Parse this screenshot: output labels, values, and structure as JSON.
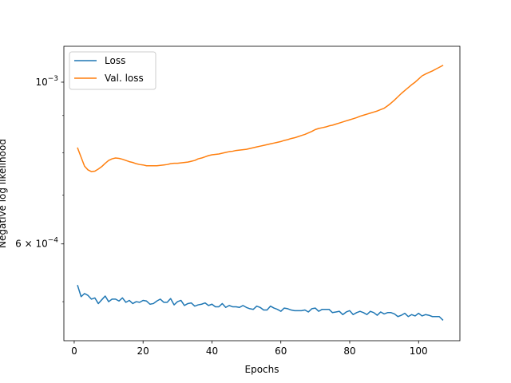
{
  "chart_data": {
    "type": "line",
    "title": "",
    "xlabel": "Epochs",
    "ylabel": "Negative log likelihood",
    "yscale": "log",
    "xlim": [
      -3,
      112
    ],
    "ylim": [
      0.000442,
      0.00112
    ],
    "xticks": [
      0,
      20,
      40,
      60,
      80,
      100
    ],
    "xtick_labels": [
      "0",
      "20",
      "40",
      "60",
      "80",
      "100"
    ],
    "yticks": [
      0.0006,
      0.001
    ],
    "ytick_labels": [
      {
        "mant": "6",
        "base": "10",
        "exp": "−4"
      },
      {
        "mant": "",
        "base": "10",
        "exp": "−3"
      }
    ],
    "grid": false,
    "legend_position": "top-left",
    "series": [
      {
        "name": "Loss",
        "color": "#1f77b4",
        "x": [
          1,
          2,
          3,
          4,
          5,
          6,
          7,
          8,
          9,
          10,
          11,
          12,
          13,
          14,
          15,
          16,
          17,
          18,
          19,
          20,
          21,
          22,
          23,
          24,
          25,
          26,
          27,
          28,
          29,
          30,
          31,
          32,
          33,
          34,
          35,
          36,
          37,
          38,
          39,
          40,
          41,
          42,
          43,
          44,
          45,
          46,
          47,
          48,
          49,
          50,
          51,
          52,
          53,
          54,
          55,
          56,
          57,
          58,
          59,
          60,
          61,
          62,
          63,
          64,
          65,
          66,
          67,
          68,
          69,
          70,
          71,
          72,
          73,
          74,
          75,
          76,
          77,
          78,
          79,
          80,
          81,
          82,
          83,
          84,
          85,
          86,
          87,
          88,
          89,
          90,
          91,
          92,
          93,
          94,
          95,
          96,
          97,
          98,
          99,
          100,
          101,
          102,
          103,
          104,
          105,
          106,
          107
        ],
        "values": [
          0.000526,
          0.000508,
          0.000513,
          0.00051,
          0.000504,
          0.000506,
          0.000497,
          0.000503,
          0.000509,
          0.0005,
          0.000504,
          0.000504,
          0.000501,
          0.000506,
          0.000499,
          0.000502,
          0.000497,
          0.0005,
          0.000499,
          0.000502,
          0.000501,
          0.000496,
          0.000497,
          0.000501,
          0.000504,
          0.000499,
          0.000499,
          0.000505,
          0.000495,
          0.0005,
          0.000502,
          0.000494,
          0.000497,
          0.000498,
          0.000493,
          0.000495,
          0.000496,
          0.000498,
          0.000494,
          0.000496,
          0.000492,
          0.000492,
          0.000497,
          0.000491,
          0.000494,
          0.000492,
          0.000492,
          0.000491,
          0.000494,
          0.000491,
          0.000489,
          0.000488,
          0.000493,
          0.000491,
          0.000487,
          0.000487,
          0.000493,
          0.00049,
          0.000488,
          0.000485,
          0.00049,
          0.000489,
          0.000487,
          0.000486,
          0.000486,
          0.000486,
          0.000487,
          0.000484,
          0.000489,
          0.00049,
          0.000485,
          0.000488,
          0.000488,
          0.000488,
          0.000483,
          0.000484,
          0.000485,
          0.00048,
          0.000484,
          0.000486,
          0.00048,
          0.000483,
          0.000485,
          0.000483,
          0.00048,
          0.000485,
          0.000483,
          0.000479,
          0.000484,
          0.000481,
          0.000483,
          0.000483,
          0.000481,
          0.000477,
          0.000479,
          0.000482,
          0.000477,
          0.00048,
          0.000478,
          0.000482,
          0.000478,
          0.00048,
          0.000479,
          0.000477,
          0.000477,
          0.000477,
          0.000472
        ]
      },
      {
        "name": "Val. loss",
        "color": "#ff7f0e",
        "x": [
          1,
          2,
          3,
          4,
          5,
          6,
          7,
          8,
          9,
          10,
          11,
          12,
          13,
          14,
          15,
          16,
          17,
          18,
          19,
          20,
          21,
          22,
          23,
          24,
          25,
          26,
          27,
          28,
          29,
          30,
          31,
          32,
          33,
          34,
          35,
          36,
          37,
          38,
          39,
          40,
          41,
          42,
          43,
          44,
          45,
          46,
          47,
          48,
          49,
          50,
          51,
          52,
          53,
          54,
          55,
          56,
          57,
          58,
          59,
          60,
          61,
          62,
          63,
          64,
          65,
          66,
          67,
          68,
          69,
          70,
          71,
          72,
          73,
          74,
          75,
          76,
          77,
          78,
          79,
          80,
          81,
          82,
          83,
          84,
          85,
          86,
          87,
          88,
          89,
          90,
          91,
          92,
          93,
          94,
          95,
          96,
          97,
          98,
          99,
          100,
          101,
          102,
          103,
          104,
          105,
          106,
          107
        ],
        "values": [
          0.000812,
          0.000789,
          0.000767,
          0.000758,
          0.000754,
          0.000755,
          0.00076,
          0.000766,
          0.000774,
          0.000781,
          0.000785,
          0.000787,
          0.000786,
          0.000784,
          0.000781,
          0.000778,
          0.000776,
          0.000773,
          0.000771,
          0.00077,
          0.000768,
          0.000768,
          0.000768,
          0.000768,
          0.000769,
          0.00077,
          0.000771,
          0.000773,
          0.000774,
          0.000774,
          0.000775,
          0.000776,
          0.000777,
          0.000779,
          0.000781,
          0.000785,
          0.000787,
          0.00079,
          0.000793,
          0.000795,
          0.000796,
          0.000797,
          0.000799,
          0.000801,
          0.000803,
          0.000804,
          0.000806,
          0.000807,
          0.000808,
          0.000809,
          0.000811,
          0.000813,
          0.000815,
          0.000817,
          0.000819,
          0.000821,
          0.000823,
          0.000825,
          0.000827,
          0.000829,
          0.000832,
          0.000834,
          0.000837,
          0.000839,
          0.000842,
          0.000845,
          0.000848,
          0.000852,
          0.000856,
          0.000861,
          0.000864,
          0.000866,
          0.000868,
          0.000871,
          0.000873,
          0.000876,
          0.000879,
          0.000882,
          0.000885,
          0.000888,
          0.000891,
          0.000894,
          0.000898,
          0.000901,
          0.000904,
          0.000907,
          0.00091,
          0.000913,
          0.000917,
          0.000921,
          0.000928,
          0.000936,
          0.000945,
          0.000955,
          0.000965,
          0.000974,
          0.000983,
          0.000992,
          0.001,
          0.00101,
          0.00102,
          0.001026,
          0.001031,
          0.001036,
          0.001042,
          0.001048,
          0.001054
        ]
      }
    ]
  }
}
